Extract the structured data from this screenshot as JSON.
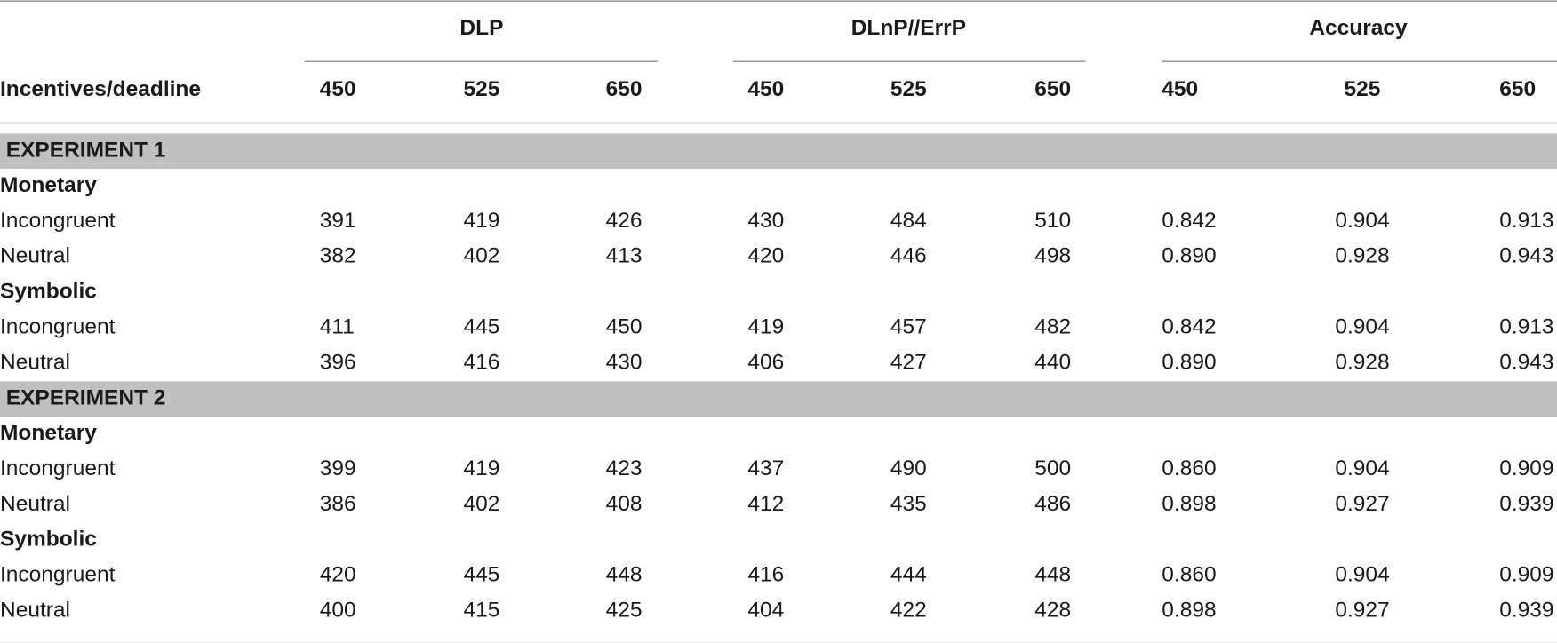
{
  "table": {
    "row_header": "Incentives/deadline",
    "group_headers": [
      "DLP",
      "DLnP//ErrP",
      "Accuracy"
    ],
    "column_headers": [
      "450",
      "525",
      "650",
      "450",
      "525",
      "650",
      "450",
      "525",
      "650"
    ],
    "sections": [
      {
        "title": "EXPERIMENT 1",
        "groups": [
          {
            "title": "Monetary",
            "rows": [
              {
                "label": "Incongruent",
                "cells": [
                  "391",
                  "419",
                  "426",
                  "430",
                  "484",
                  "510",
                  "0.842",
                  "0.904",
                  "0.913"
                ]
              },
              {
                "label": "Neutral",
                "cells": [
                  "382",
                  "402",
                  "413",
                  "420",
                  "446",
                  "498",
                  "0.890",
                  "0.928",
                  "0.943"
                ]
              }
            ]
          },
          {
            "title": "Symbolic",
            "rows": [
              {
                "label": "Incongruent",
                "cells": [
                  "411",
                  "445",
                  "450",
                  "419",
                  "457",
                  "482",
                  "0.842",
                  "0.904",
                  "0.913"
                ]
              },
              {
                "label": "Neutral",
                "cells": [
                  "396",
                  "416",
                  "430",
                  "406",
                  "427",
                  "440",
                  "0.890",
                  "0.928",
                  "0.943"
                ]
              }
            ]
          }
        ]
      },
      {
        "title": "EXPERIMENT 2",
        "groups": [
          {
            "title": "Monetary",
            "rows": [
              {
                "label": "Incongruent",
                "cells": [
                  "399",
                  "419",
                  "423",
                  "437",
                  "490",
                  "500",
                  "0.860",
                  "0.904",
                  "0.909"
                ]
              },
              {
                "label": "Neutral",
                "cells": [
                  "386",
                  "402",
                  "408",
                  "412",
                  "435",
                  "486",
                  "0.898",
                  "0.927",
                  "0.939"
                ]
              }
            ]
          },
          {
            "title": "Symbolic",
            "rows": [
              {
                "label": "Incongruent",
                "cells": [
                  "420",
                  "445",
                  "448",
                  "416",
                  "444",
                  "448",
                  "0.860",
                  "0.904",
                  "0.909"
                ]
              },
              {
                "label": "Neutral",
                "cells": [
                  "400",
                  "415",
                  "425",
                  "404",
                  "422",
                  "428",
                  "0.898",
                  "0.927",
                  "0.939"
                ]
              }
            ]
          }
        ]
      }
    ]
  }
}
